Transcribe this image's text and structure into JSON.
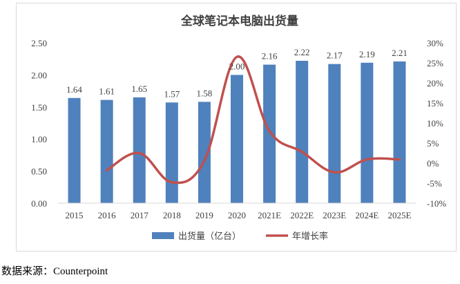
{
  "chart_data": {
    "type": "bar",
    "title": "全球笔记本电脑出货量",
    "categories": [
      "2015",
      "2016",
      "2017",
      "2018",
      "2019",
      "2020",
      "2021E",
      "2022E",
      "2023E",
      "2024E",
      "2025E"
    ],
    "series": [
      {
        "name": "出货量（亿台）",
        "type": "bar",
        "axis": "left",
        "color": "#4f81bd",
        "values": [
          1.64,
          1.61,
          1.65,
          1.57,
          1.58,
          2.0,
          2.16,
          2.22,
          2.17,
          2.19,
          2.21
        ],
        "labels": [
          "1.64",
          "1.61",
          "1.65",
          "1.57",
          "1.58",
          "2.00",
          "2.16",
          "2.22",
          "2.17",
          "2.19",
          "2.21"
        ]
      },
      {
        "name": "年增长率",
        "type": "line",
        "axis": "right",
        "color": "#c0504d",
        "values": [
          null,
          -1.8,
          2.5,
          -4.8,
          0.6,
          26.5,
          8.0,
          2.8,
          -2.3,
          0.9,
          0.9
        ]
      }
    ],
    "y_left": {
      "min": 0,
      "max": 2.5,
      "ticks": [
        "0.00",
        "0.50",
        "1.00",
        "1.50",
        "2.00",
        "2.50"
      ]
    },
    "y_right": {
      "min": -10,
      "max": 30,
      "ticks": [
        "-10%",
        "-5%",
        "0%",
        "5%",
        "10%",
        "15%",
        "20%",
        "25%",
        "30%"
      ]
    },
    "legend_position": "bottom",
    "grid": false
  },
  "source_text": "数据来源：Counterpoint"
}
